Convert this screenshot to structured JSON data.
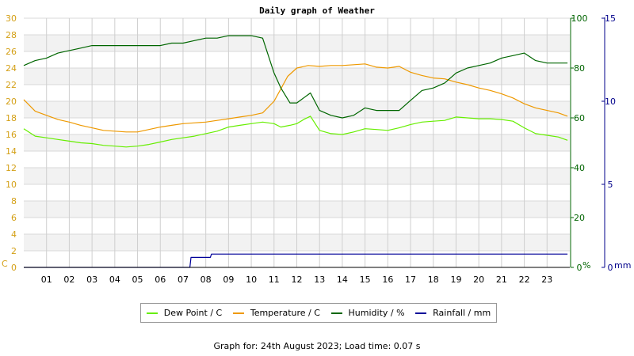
{
  "chart_data": {
    "type": "line",
    "title": "Daily graph of Weather",
    "x_ticks": [
      "01",
      "02",
      "03",
      "04",
      "05",
      "06",
      "07",
      "08",
      "09",
      "10",
      "11",
      "12",
      "13",
      "14",
      "15",
      "16",
      "17",
      "18",
      "19",
      "20",
      "21",
      "22",
      "23"
    ],
    "xlim": [
      0,
      24
    ],
    "axes": {
      "temperature": {
        "unit": "C",
        "range": [
          0,
          30
        ],
        "ticks": [
          0,
          2,
          4,
          6,
          8,
          10,
          12,
          14,
          16,
          18,
          20,
          22,
          24,
          26,
          28,
          30
        ],
        "color": "#d4a017"
      },
      "humidity": {
        "unit": "%",
        "range": [
          0,
          100
        ],
        "ticks": [
          0,
          20,
          40,
          60,
          80,
          100
        ],
        "color": "#006400"
      },
      "rainfall": {
        "unit": "mm",
        "range": [
          0,
          15
        ],
        "ticks": [
          0,
          5,
          10,
          15
        ],
        "color": "#00008b"
      }
    },
    "series": [
      {
        "name": "Dew Point / C",
        "axis": "temperature",
        "color": "#66ee00",
        "points": [
          [
            0,
            16.7
          ],
          [
            0.5,
            15.8
          ],
          [
            1,
            15.6
          ],
          [
            1.5,
            15.4
          ],
          [
            2,
            15.2
          ],
          [
            2.5,
            15.0
          ],
          [
            3,
            14.9
          ],
          [
            3.5,
            14.7
          ],
          [
            4,
            14.6
          ],
          [
            4.5,
            14.5
          ],
          [
            5,
            14.6
          ],
          [
            5.5,
            14.8
          ],
          [
            6,
            15.1
          ],
          [
            6.5,
            15.4
          ],
          [
            7,
            15.6
          ],
          [
            7.5,
            15.8
          ],
          [
            8,
            16.1
          ],
          [
            8.5,
            16.4
          ],
          [
            9,
            16.9
          ],
          [
            9.5,
            17.1
          ],
          [
            10,
            17.3
          ],
          [
            10.5,
            17.5
          ],
          [
            11,
            17.3
          ],
          [
            11.3,
            16.9
          ],
          [
            11.7,
            17.1
          ],
          [
            12,
            17.3
          ],
          [
            12.3,
            17.8
          ],
          [
            12.6,
            18.2
          ],
          [
            13,
            16.5
          ],
          [
            13.5,
            16.1
          ],
          [
            14,
            16.0
          ],
          [
            14.5,
            16.3
          ],
          [
            15,
            16.7
          ],
          [
            15.5,
            16.6
          ],
          [
            16,
            16.5
          ],
          [
            16.5,
            16.8
          ],
          [
            17,
            17.2
          ],
          [
            17.5,
            17.5
          ],
          [
            18,
            17.6
          ],
          [
            18.5,
            17.7
          ],
          [
            19,
            18.1
          ],
          [
            19.5,
            18.0
          ],
          [
            20,
            17.9
          ],
          [
            20.5,
            17.9
          ],
          [
            21,
            17.8
          ],
          [
            21.5,
            17.6
          ],
          [
            22,
            16.8
          ],
          [
            22.5,
            16.1
          ],
          [
            23,
            15.9
          ],
          [
            23.5,
            15.7
          ],
          [
            23.9,
            15.3
          ]
        ]
      },
      {
        "name": "Temperature / C",
        "axis": "temperature",
        "color": "#ee9900",
        "points": [
          [
            0,
            20.2
          ],
          [
            0.5,
            18.8
          ],
          [
            1,
            18.3
          ],
          [
            1.5,
            17.8
          ],
          [
            2,
            17.5
          ],
          [
            2.5,
            17.1
          ],
          [
            3,
            16.8
          ],
          [
            3.5,
            16.5
          ],
          [
            4,
            16.4
          ],
          [
            4.5,
            16.3
          ],
          [
            5,
            16.3
          ],
          [
            5.5,
            16.6
          ],
          [
            6,
            16.9
          ],
          [
            6.5,
            17.1
          ],
          [
            7,
            17.3
          ],
          [
            7.5,
            17.4
          ],
          [
            8,
            17.5
          ],
          [
            8.5,
            17.7
          ],
          [
            9,
            17.9
          ],
          [
            9.5,
            18.1
          ],
          [
            10,
            18.3
          ],
          [
            10.5,
            18.6
          ],
          [
            11,
            20.0
          ],
          [
            11.3,
            21.5
          ],
          [
            11.6,
            23.0
          ],
          [
            12,
            24.0
          ],
          [
            12.5,
            24.3
          ],
          [
            13,
            24.2
          ],
          [
            13.5,
            24.3
          ],
          [
            14,
            24.3
          ],
          [
            14.5,
            24.4
          ],
          [
            15,
            24.5
          ],
          [
            15.5,
            24.1
          ],
          [
            16,
            24.0
          ],
          [
            16.5,
            24.2
          ],
          [
            17,
            23.5
          ],
          [
            17.5,
            23.1
          ],
          [
            18,
            22.8
          ],
          [
            18.5,
            22.7
          ],
          [
            19,
            22.3
          ],
          [
            19.5,
            22.0
          ],
          [
            20,
            21.6
          ],
          [
            20.5,
            21.3
          ],
          [
            21,
            20.9
          ],
          [
            21.5,
            20.4
          ],
          [
            22,
            19.7
          ],
          [
            22.5,
            19.2
          ],
          [
            23,
            18.9
          ],
          [
            23.5,
            18.6
          ],
          [
            23.9,
            18.2
          ]
        ]
      },
      {
        "name": "Humidity / %",
        "axis": "humidity",
        "color": "#006600",
        "points": [
          [
            0,
            81
          ],
          [
            0.5,
            83
          ],
          [
            1,
            84
          ],
          [
            1.5,
            86
          ],
          [
            2,
            87
          ],
          [
            2.5,
            88
          ],
          [
            3,
            89
          ],
          [
            3.5,
            89
          ],
          [
            4,
            89
          ],
          [
            4.5,
            89
          ],
          [
            5,
            89
          ],
          [
            5.5,
            89
          ],
          [
            6,
            89
          ],
          [
            6.5,
            90
          ],
          [
            7,
            90
          ],
          [
            7.5,
            91
          ],
          [
            8,
            92
          ],
          [
            8.5,
            92
          ],
          [
            9,
            93
          ],
          [
            9.5,
            93
          ],
          [
            10,
            93
          ],
          [
            10.5,
            92
          ],
          [
            11,
            78
          ],
          [
            11.3,
            72
          ],
          [
            11.7,
            66
          ],
          [
            12,
            66
          ],
          [
            12.3,
            68
          ],
          [
            12.6,
            70
          ],
          [
            13,
            63
          ],
          [
            13.5,
            61
          ],
          [
            14,
            60
          ],
          [
            14.5,
            61
          ],
          [
            15,
            64
          ],
          [
            15.5,
            63
          ],
          [
            16,
            63
          ],
          [
            16.5,
            63
          ],
          [
            17,
            67
          ],
          [
            17.5,
            71
          ],
          [
            18,
            72
          ],
          [
            18.5,
            74
          ],
          [
            19,
            78
          ],
          [
            19.5,
            80
          ],
          [
            20,
            81
          ],
          [
            20.5,
            82
          ],
          [
            21,
            84
          ],
          [
            21.5,
            85
          ],
          [
            22,
            86
          ],
          [
            22.5,
            83
          ],
          [
            23,
            82
          ],
          [
            23.5,
            82
          ],
          [
            23.9,
            82
          ]
        ]
      },
      {
        "name": "Rainfall / mm",
        "axis": "rainfall",
        "color": "#000099",
        "points": [
          [
            0,
            0
          ],
          [
            7.3,
            0
          ],
          [
            7.35,
            0.6
          ],
          [
            8.2,
            0.6
          ],
          [
            8.25,
            0.8
          ],
          [
            23.9,
            0.8
          ]
        ]
      }
    ],
    "grid": true,
    "legend": "bottom"
  },
  "axis_unit_left": "C",
  "axis_unit_humidity": "%",
  "axis_unit_rain": "mm",
  "legend": {
    "dew_point": "Dew Point / C",
    "temperature": "Temperature / C",
    "humidity": "Humidity / %",
    "rainfall": "Rainfall / mm"
  },
  "footer": "Graph for: 24th August 2023; Load time: 0.07 s"
}
